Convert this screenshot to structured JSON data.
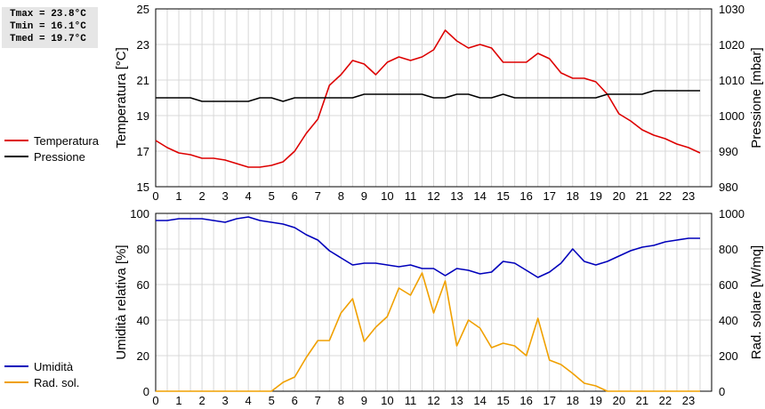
{
  "stats": {
    "tmax": "Tmax = 23.8°C",
    "tmin": "Tmin = 16.1°C",
    "tmed": "Tmed = 19.7°C"
  },
  "colors": {
    "temperature": "#dd0000",
    "pressure": "#000000",
    "humidity": "#0000bb",
    "radiation": "#f0a000",
    "grid": "#d8d8d8"
  },
  "chart_data": [
    {
      "type": "line",
      "ylabel_left": "Temperatura [°C]",
      "ylabel_right": "Pressione [mbar]",
      "ylim_left": [
        15,
        25
      ],
      "ylim_right": [
        980,
        1030
      ],
      "yticks_left": [
        "15",
        "17",
        "19",
        "21",
        "23",
        "25"
      ],
      "yticks_right": [
        "980",
        "990",
        "1000",
        "1010",
        "1020",
        "1030"
      ],
      "xlim": [
        0,
        24
      ],
      "xticks": [
        "0",
        "1",
        "2",
        "3",
        "4",
        "5",
        "6",
        "7",
        "8",
        "9",
        "10",
        "11",
        "12",
        "13",
        "14",
        "15",
        "16",
        "17",
        "18",
        "19",
        "20",
        "21",
        "22",
        "23"
      ],
      "grid": true,
      "legend": [
        "Temperatura",
        "Pressione"
      ],
      "series": [
        {
          "name": "Temperatura",
          "axis": "left",
          "x": [
            0,
            0.5,
            1,
            1.5,
            2,
            2.5,
            3,
            3.5,
            4,
            4.5,
            5,
            5.5,
            6,
            6.5,
            7,
            7.5,
            8,
            8.5,
            9,
            9.5,
            10,
            10.5,
            11,
            11.5,
            12,
            12.5,
            13,
            13.5,
            14,
            14.5,
            15,
            15.5,
            16,
            16.5,
            17,
            17.5,
            18,
            18.5,
            19,
            19.5,
            20,
            20.5,
            21,
            21.5,
            22,
            22.5,
            23,
            23.5
          ],
          "values": [
            17.6,
            17.2,
            16.9,
            16.8,
            16.6,
            16.6,
            16.5,
            16.3,
            16.1,
            16.1,
            16.2,
            16.4,
            17.0,
            18.0,
            18.8,
            20.7,
            21.3,
            22.1,
            21.9,
            21.3,
            22.0,
            22.3,
            22.1,
            22.3,
            22.7,
            23.8,
            23.2,
            22.8,
            23.0,
            22.8,
            22.0,
            22.0,
            22.0,
            22.5,
            22.2,
            21.4,
            21.1,
            21.1,
            20.9,
            20.2,
            19.1,
            18.7,
            18.2,
            17.9,
            17.7,
            17.4,
            17.2,
            16.9
          ]
        },
        {
          "name": "Pressione",
          "axis": "right",
          "x": [
            0,
            0.5,
            1,
            1.5,
            2,
            2.5,
            3,
            3.5,
            4,
            4.5,
            5,
            5.5,
            6,
            6.5,
            7,
            7.5,
            8,
            8.5,
            9,
            9.5,
            10,
            10.5,
            11,
            11.5,
            12,
            12.5,
            13,
            13.5,
            14,
            14.5,
            15,
            15.5,
            16,
            16.5,
            17,
            17.5,
            18,
            18.5,
            19,
            19.5,
            20,
            20.5,
            21,
            21.5,
            22,
            22.5,
            23,
            23.5
          ],
          "values": [
            1005,
            1005,
            1005,
            1005,
            1004,
            1004,
            1004,
            1004,
            1004,
            1005,
            1005,
            1004,
            1005,
            1005,
            1005,
            1005,
            1005,
            1005,
            1006,
            1006,
            1006,
            1006,
            1006,
            1006,
            1005,
            1005,
            1006,
            1006,
            1005,
            1005,
            1006,
            1005,
            1005,
            1005,
            1005,
            1005,
            1005,
            1005,
            1005,
            1006,
            1006,
            1006,
            1006,
            1007,
            1007,
            1007,
            1007,
            1007
          ]
        }
      ]
    },
    {
      "type": "line",
      "ylabel_left": "Umidità relativa [%]",
      "ylabel_right": "Rad. solare [W/mq]",
      "ylim_left": [
        0,
        100
      ],
      "ylim_right": [
        0,
        1000
      ],
      "yticks_left": [
        "0",
        "20",
        "40",
        "60",
        "80",
        "100"
      ],
      "yticks_right": [
        "0",
        "200",
        "400",
        "600",
        "800",
        "1000"
      ],
      "xlim": [
        0,
        24
      ],
      "xticks": [
        "0",
        "1",
        "2",
        "3",
        "4",
        "5",
        "6",
        "7",
        "8",
        "9",
        "10",
        "11",
        "12",
        "13",
        "14",
        "15",
        "16",
        "17",
        "18",
        "19",
        "20",
        "21",
        "22",
        "23"
      ],
      "grid": true,
      "legend": [
        "Umidità",
        "Rad. sol."
      ],
      "series": [
        {
          "name": "Umidità",
          "axis": "left",
          "x": [
            0,
            0.5,
            1,
            1.5,
            2,
            2.5,
            3,
            3.5,
            4,
            4.5,
            5,
            5.5,
            6,
            6.5,
            7,
            7.5,
            8,
            8.5,
            9,
            9.5,
            10,
            10.5,
            11,
            11.5,
            12,
            12.5,
            13,
            13.5,
            14,
            14.5,
            15,
            15.5,
            16,
            16.5,
            17,
            17.5,
            18,
            18.5,
            19,
            19.5,
            20,
            20.5,
            21,
            21.5,
            22,
            22.5,
            23,
            23.5
          ],
          "values": [
            96,
            96,
            97,
            97,
            97,
            96,
            95,
            97,
            98,
            96,
            95,
            94,
            92,
            88,
            85,
            79,
            75,
            71,
            72,
            72,
            71,
            70,
            71,
            69,
            69,
            65,
            69,
            68,
            66,
            67,
            73,
            72,
            68,
            64,
            67,
            72,
            80,
            73,
            71,
            73,
            76,
            79,
            81,
            82,
            84,
            85,
            86,
            86
          ]
        },
        {
          "name": "Rad. sol.",
          "axis": "right",
          "x": [
            0,
            0.5,
            1,
            1.5,
            2,
            2.5,
            3,
            3.5,
            4,
            4.5,
            5,
            5.5,
            6,
            6.5,
            7,
            7.5,
            8,
            8.5,
            9,
            9.5,
            10,
            10.5,
            11,
            11.5,
            12,
            12.5,
            13,
            13.5,
            14,
            14.5,
            15,
            15.5,
            16,
            16.5,
            17,
            17.5,
            18,
            18.5,
            19,
            19.5,
            20,
            20.5,
            21,
            21.5,
            22,
            22.5,
            23,
            23.5
          ],
          "values": [
            0,
            0,
            0,
            0,
            0,
            0,
            0,
            0,
            0,
            0,
            0,
            50,
            80,
            190,
            285,
            285,
            440,
            520,
            280,
            360,
            420,
            580,
            540,
            665,
            440,
            620,
            255,
            400,
            355,
            245,
            270,
            255,
            200,
            410,
            175,
            150,
            100,
            45,
            30,
            0,
            0,
            0,
            0,
            0,
            0,
            0,
            0,
            0
          ]
        }
      ]
    }
  ]
}
